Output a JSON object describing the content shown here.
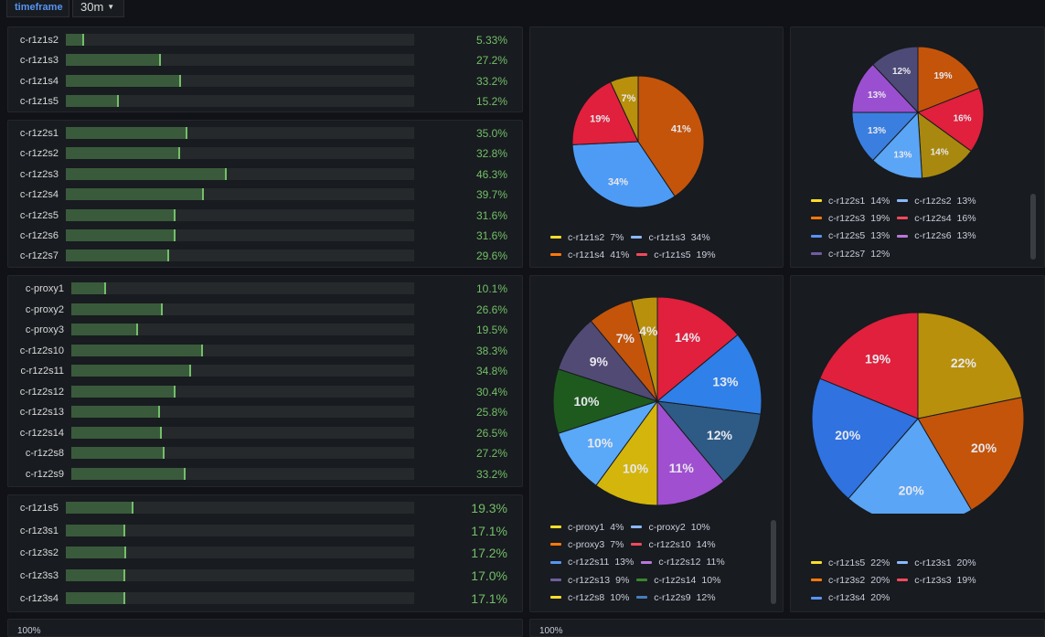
{
  "variables": {
    "label": "timeframe",
    "value": "30m"
  },
  "bar_panels": [
    {
      "rows": [
        {
          "label": "c-r1z1s2",
          "value": 5.33,
          "text": "5.33%"
        },
        {
          "label": "c-r1z1s3",
          "value": 27.2,
          "text": "27.2%"
        },
        {
          "label": "c-r1z1s4",
          "value": 33.2,
          "text": "33.2%"
        },
        {
          "label": "c-r1z1s5",
          "value": 15.2,
          "text": "15.2%"
        }
      ]
    },
    {
      "rows": [
        {
          "label": "c-r1z2s1",
          "value": 35.0,
          "text": "35.0%"
        },
        {
          "label": "c-r1z2s2",
          "value": 32.8,
          "text": "32.8%"
        },
        {
          "label": "c-r1z2s3",
          "value": 46.3,
          "text": "46.3%"
        },
        {
          "label": "c-r1z2s4",
          "value": 39.7,
          "text": "39.7%"
        },
        {
          "label": "c-r1z2s5",
          "value": 31.6,
          "text": "31.6%"
        },
        {
          "label": "c-r1z2s6",
          "value": 31.6,
          "text": "31.6%"
        },
        {
          "label": "c-r1z2s7",
          "value": 29.6,
          "text": "29.6%"
        }
      ]
    },
    {
      "rows": [
        {
          "label": "c-proxy1",
          "value": 10.1,
          "text": "10.1%"
        },
        {
          "label": "c-proxy2",
          "value": 26.6,
          "text": "26.6%"
        },
        {
          "label": "c-proxy3",
          "value": 19.5,
          "text": "19.5%"
        },
        {
          "label": "c-r1z2s10",
          "value": 38.3,
          "text": "38.3%"
        },
        {
          "label": "c-r1z2s11",
          "value": 34.8,
          "text": "34.8%"
        },
        {
          "label": "c-r1z2s12",
          "value": 30.4,
          "text": "30.4%"
        },
        {
          "label": "c-r1z2s13",
          "value": 25.8,
          "text": "25.8%"
        },
        {
          "label": "c-r1z2s14",
          "value": 26.5,
          "text": "26.5%"
        },
        {
          "label": "c-r1z2s8",
          "value": 27.2,
          "text": "27.2%"
        },
        {
          "label": "c-r1z2s9",
          "value": 33.2,
          "text": "33.2%"
        }
      ]
    },
    {
      "rows": [
        {
          "label": "c-r1z1s5",
          "value": 19.3,
          "text": "19.3%"
        },
        {
          "label": "c-r1z3s1",
          "value": 17.1,
          "text": "17.1%"
        },
        {
          "label": "c-r1z3s2",
          "value": 17.2,
          "text": "17.2%"
        },
        {
          "label": "c-r1z3s3",
          "value": 17.0,
          "text": "17.0%"
        },
        {
          "label": "c-r1z3s4",
          "value": 17.1,
          "text": "17.1%"
        }
      ]
    }
  ],
  "pies": [
    {
      "slices": [
        {
          "name": "c-r1z1s4",
          "value": 41,
          "color": "#c4540a"
        },
        {
          "name": "c-r1z1s3",
          "value": 34,
          "color": "#4e9bf5"
        },
        {
          "name": "c-r1z1s5",
          "value": 19,
          "color": "#e0203c"
        },
        {
          "name": "c-r1z1s2",
          "value": 7,
          "color": "#b8900c"
        }
      ],
      "legend": [
        {
          "name": "c-r1z1s2",
          "pct": "7%",
          "color": "#fade2a"
        },
        {
          "name": "c-r1z1s3",
          "pct": "34%",
          "color": "#8ab8ff"
        },
        {
          "name": "c-r1z1s4",
          "pct": "41%",
          "color": "#ff780a"
        },
        {
          "name": "c-r1z1s5",
          "pct": "19%",
          "color": "#f2495c"
        }
      ]
    },
    {
      "slices": [
        {
          "name": "c-r1z2s3",
          "value": 19,
          "color": "#c4540a"
        },
        {
          "name": "c-r1z2s4",
          "value": 16,
          "color": "#e0203c"
        },
        {
          "name": "c-r1z2s1",
          "value": 14,
          "color": "#a8880e"
        },
        {
          "name": "c-r1z2s2",
          "value": 13,
          "color": "#5aa5f5"
        },
        {
          "name": "c-r1z2s5",
          "value": 13,
          "color": "#3a7fe0"
        },
        {
          "name": "c-r1z2s6",
          "value": 13,
          "color": "#9a4fd0"
        },
        {
          "name": "c-r1z2s7",
          "value": 12,
          "color": "#4e4a78"
        }
      ],
      "legend": [
        {
          "name": "c-r1z2s1",
          "pct": "14%",
          "color": "#fade2a"
        },
        {
          "name": "c-r1z2s2",
          "pct": "13%",
          "color": "#8ab8ff"
        },
        {
          "name": "c-r1z2s3",
          "pct": "19%",
          "color": "#ff780a"
        },
        {
          "name": "c-r1z2s4",
          "pct": "16%",
          "color": "#f2495c"
        },
        {
          "name": "c-r1z2s5",
          "pct": "13%",
          "color": "#5794f2"
        },
        {
          "name": "c-r1z2s6",
          "pct": "13%",
          "color": "#b877d9"
        },
        {
          "name": "c-r1z2s7",
          "pct": "12%",
          "color": "#705da0"
        }
      ]
    },
    {
      "slices": [
        {
          "name": "c-r1z2s10",
          "value": 14,
          "color": "#e0203c"
        },
        {
          "name": "c-r1z2s11",
          "value": 13,
          "color": "#2f80e8"
        },
        {
          "name": "c-r1z2s9",
          "value": 12,
          "color": "#2e5b85"
        },
        {
          "name": "c-r1z2s12",
          "value": 11,
          "color": "#a04fd0"
        },
        {
          "name": "c-r1z2s8",
          "value": 10,
          "color": "#d4b50c"
        },
        {
          "name": "c-proxy2",
          "value": 10,
          "color": "#5aa8f8"
        },
        {
          "name": "c-r1z2s14",
          "value": 10,
          "color": "#1e5a1e"
        },
        {
          "name": "c-r1z2s13",
          "value": 9,
          "color": "#514a75"
        },
        {
          "name": "c-proxy3",
          "value": 7,
          "color": "#c4540a"
        },
        {
          "name": "c-proxy1",
          "value": 4,
          "color": "#b8900c"
        }
      ],
      "legend": [
        {
          "name": "c-proxy1",
          "pct": "4%",
          "color": "#fade2a"
        },
        {
          "name": "c-proxy2",
          "pct": "10%",
          "color": "#8ab8ff"
        },
        {
          "name": "c-proxy3",
          "pct": "7%",
          "color": "#ff780a"
        },
        {
          "name": "c-r1z2s10",
          "pct": "14%",
          "color": "#f2495c"
        },
        {
          "name": "c-r1z2s11",
          "pct": "13%",
          "color": "#5794f2"
        },
        {
          "name": "c-r1z2s12",
          "pct": "11%",
          "color": "#b877d9"
        },
        {
          "name": "c-r1z2s13",
          "pct": "9%",
          "color": "#705da0"
        },
        {
          "name": "c-r1z2s14",
          "pct": "10%",
          "color": "#37872d"
        },
        {
          "name": "c-r1z2s8",
          "pct": "10%",
          "color": "#fade2a"
        },
        {
          "name": "c-r1z2s9",
          "pct": "12%",
          "color": "#447ebc"
        }
      ]
    },
    {
      "slices": [
        {
          "name": "c-r1z1s5",
          "value": 22,
          "color": "#b8900c"
        },
        {
          "name": "c-r1z3s2",
          "value": 20,
          "color": "#c4540a"
        },
        {
          "name": "c-r1z3s1",
          "value": 20,
          "color": "#5aa5f5"
        },
        {
          "name": "c-r1z3s4",
          "value": 20,
          "color": "#2f72e0"
        },
        {
          "name": "c-r1z3s3",
          "value": 19,
          "color": "#e0203c"
        }
      ],
      "legend": [
        {
          "name": "c-r1z1s5",
          "pct": "22%",
          "color": "#fade2a"
        },
        {
          "name": "c-r1z3s1",
          "pct": "20%",
          "color": "#8ab8ff"
        },
        {
          "name": "c-r1z3s2",
          "pct": "20%",
          "color": "#ff780a"
        },
        {
          "name": "c-r1z3s3",
          "pct": "19%",
          "color": "#f2495c"
        },
        {
          "name": "c-r1z3s4",
          "pct": "20%",
          "color": "#5794f2"
        }
      ]
    }
  ],
  "bottom_panels": [
    {
      "text": "100%"
    },
    {
      "text": "100%"
    }
  ]
}
